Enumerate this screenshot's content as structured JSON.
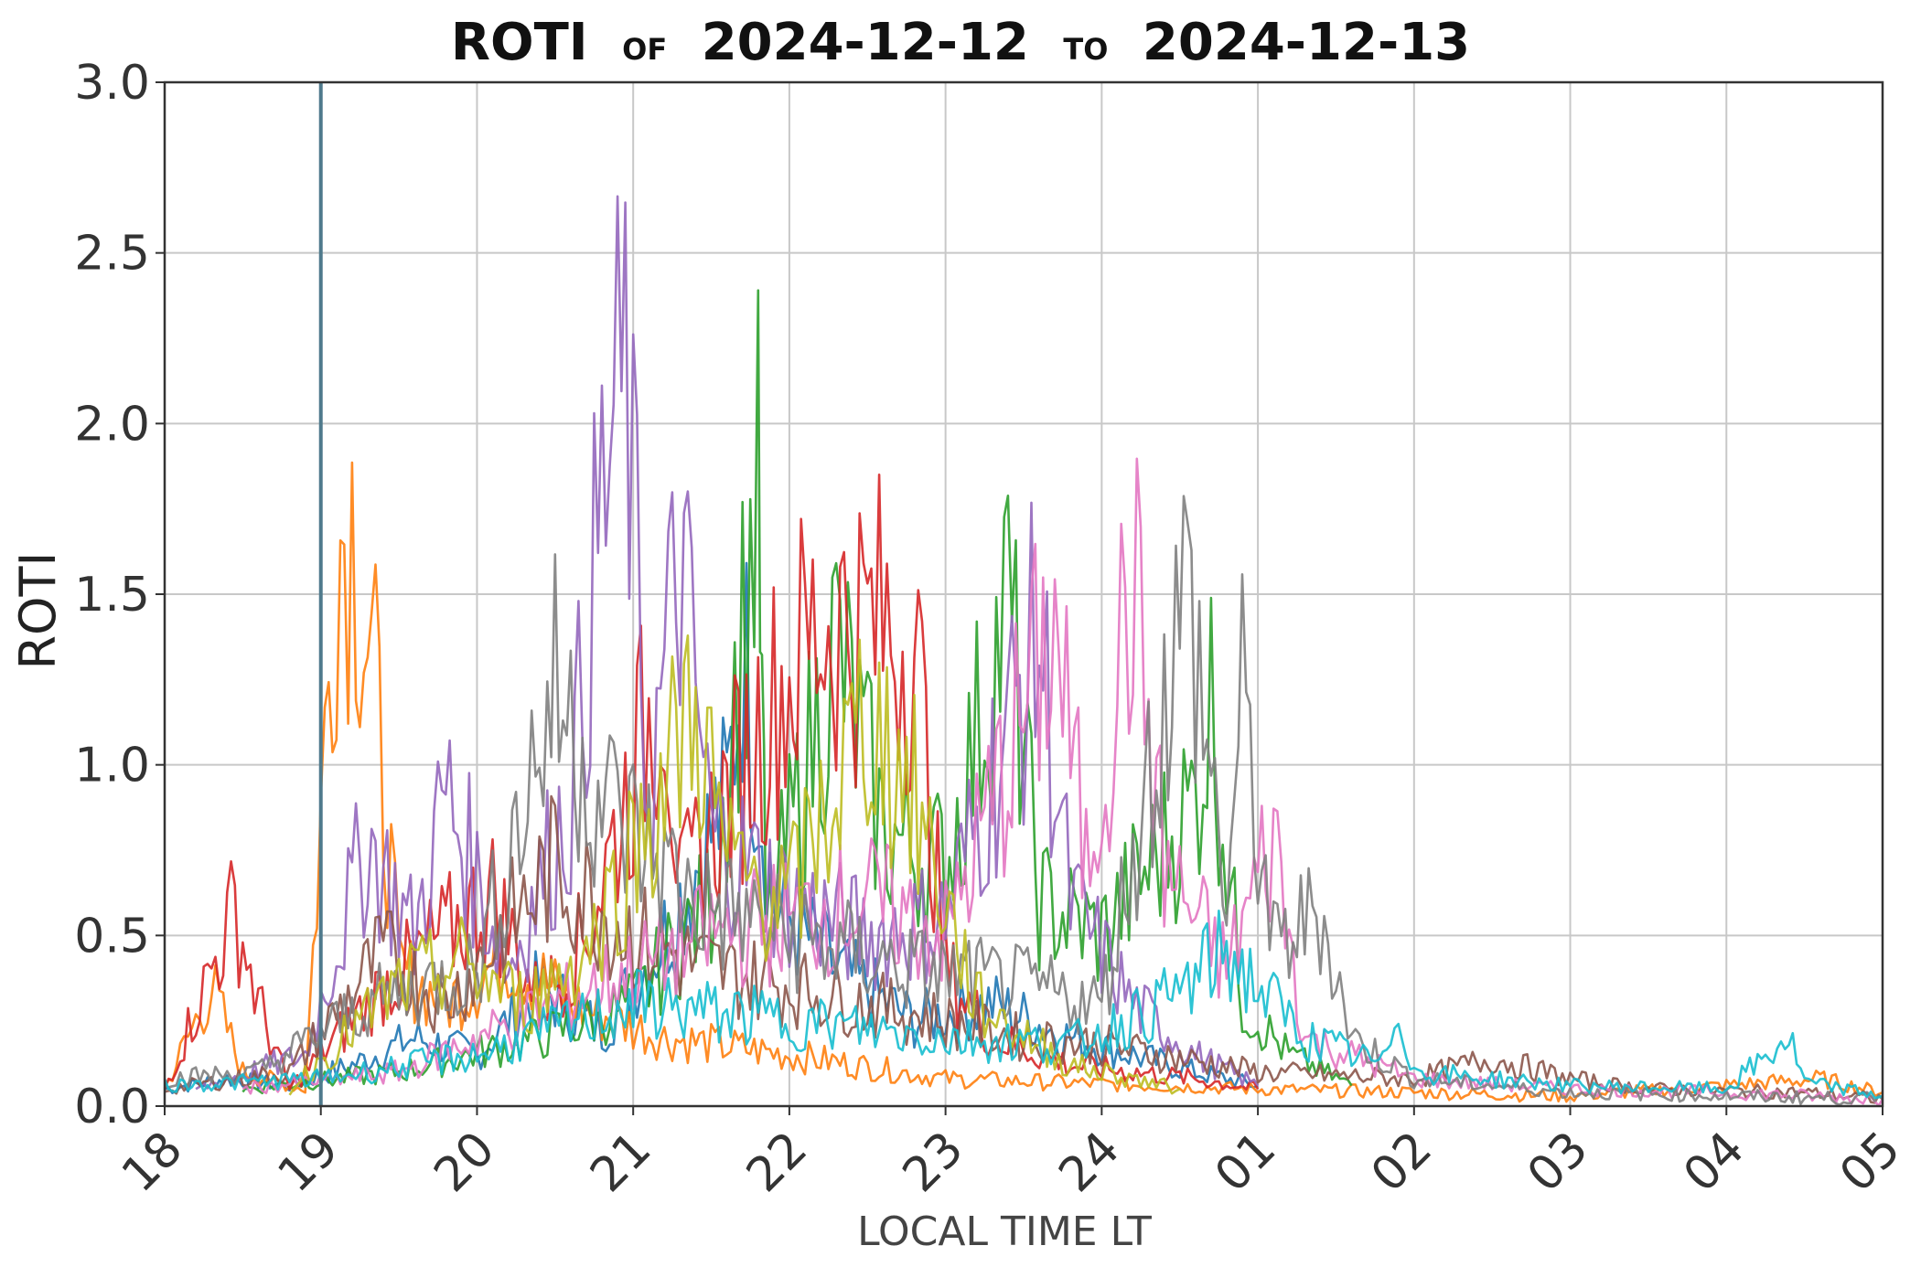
{
  "title": {
    "metric": "ROTI",
    "of_word": "OF",
    "start_date": "2024-12-12",
    "to_word": "TO",
    "end_date": "2024-12-13"
  },
  "chart_data": {
    "type": "line",
    "title": "ROTI OF 2024-12-12 TO 2024-12-13",
    "xlabel": "LOCAL TIME LT",
    "ylabel": "ROTI",
    "x_tick_labels": [
      "18",
      "19",
      "20",
      "21",
      "22",
      "23",
      "24",
      "01",
      "02",
      "03",
      "04",
      "05"
    ],
    "xlim": [
      18,
      29
    ],
    "ylim": [
      0,
      3.0
    ],
    "y_tick_labels": [
      "0.0",
      "0.5",
      "1.0",
      "1.5",
      "2.0",
      "2.5",
      "3.0"
    ],
    "grid": true,
    "legend": "none",
    "vertical_marker": {
      "x": 19.0,
      "color": "#4f7a8c"
    },
    "series": [
      {
        "color": "#1f77b4",
        "points": [
          [
            18.0,
            0.05
          ],
          [
            18.4,
            0.08
          ],
          [
            18.8,
            0.06
          ],
          [
            19.2,
            0.12
          ],
          [
            19.6,
            0.2
          ],
          [
            20.0,
            0.15
          ],
          [
            20.4,
            0.35
          ],
          [
            20.8,
            0.22
          ],
          [
            21.2,
            0.5
          ],
          [
            21.6,
            0.9
          ],
          [
            21.7,
            1.35
          ],
          [
            21.9,
            0.6
          ],
          [
            22.3,
            0.4
          ],
          [
            22.8,
            0.25
          ],
          [
            23.3,
            0.3
          ],
          [
            23.8,
            0.2
          ],
          [
            24.2,
            0.15
          ],
          [
            24.6,
            0.1
          ],
          [
            25.0,
            0.06
          ]
        ]
      },
      {
        "color": "#ff7f0e",
        "points": [
          [
            18.0,
            0.05
          ],
          [
            18.3,
            0.35
          ],
          [
            18.5,
            0.1
          ],
          [
            18.9,
            0.05
          ],
          [
            19.1,
            1.65
          ],
          [
            19.2,
            1.74
          ],
          [
            19.35,
            1.2
          ],
          [
            19.5,
            0.4
          ],
          [
            19.8,
            0.3
          ],
          [
            20.2,
            0.45
          ],
          [
            20.6,
            0.3
          ],
          [
            21.2,
            0.2
          ],
          [
            22.0,
            0.15
          ],
          [
            23.0,
            0.08
          ],
          [
            25.0,
            0.05
          ],
          [
            27.0,
            0.03
          ],
          [
            28.6,
            0.08
          ],
          [
            29.0,
            0.04
          ]
        ]
      },
      {
        "color": "#2ca02c",
        "points": [
          [
            18.5,
            0.05
          ],
          [
            19.5,
            0.1
          ],
          [
            20.4,
            0.2
          ],
          [
            21.0,
            0.3
          ],
          [
            21.5,
            0.6
          ],
          [
            21.8,
            1.79
          ],
          [
            21.85,
            0.5
          ],
          [
            22.3,
            1.35
          ],
          [
            22.6,
            0.8
          ],
          [
            23.0,
            0.7
          ],
          [
            23.4,
            1.47
          ],
          [
            23.6,
            0.6
          ],
          [
            24.0,
            0.5
          ],
          [
            24.6,
            0.9
          ],
          [
            24.7,
            1.2
          ],
          [
            24.9,
            0.3
          ],
          [
            25.2,
            0.15
          ],
          [
            25.6,
            0.06
          ]
        ]
      },
      {
        "color": "#d62728",
        "points": [
          [
            18.0,
            0.05
          ],
          [
            18.45,
            0.58
          ],
          [
            18.6,
            0.3
          ],
          [
            18.8,
            0.05
          ],
          [
            19.4,
            0.35
          ],
          [
            20.1,
            0.62
          ],
          [
            20.4,
            0.3
          ],
          [
            20.7,
            0.5
          ],
          [
            21.2,
            1.3
          ],
          [
            21.3,
            0.6
          ],
          [
            21.8,
            1.1
          ],
          [
            22.2,
            1.42
          ],
          [
            22.6,
            1.4
          ],
          [
            22.8,
            1.38
          ],
          [
            23.0,
            0.4
          ],
          [
            23.3,
            0.2
          ],
          [
            23.8,
            0.12
          ],
          [
            24.6,
            0.08
          ],
          [
            25.0,
            0.05
          ]
        ]
      },
      {
        "color": "#9467bd",
        "points": [
          [
            18.2,
            0.05
          ],
          [
            18.9,
            0.15
          ],
          [
            19.3,
            0.78
          ],
          [
            19.6,
            0.5
          ],
          [
            19.8,
            0.92
          ],
          [
            20.2,
            0.4
          ],
          [
            20.6,
            0.9
          ],
          [
            20.8,
            1.75
          ],
          [
            20.95,
            2.15
          ],
          [
            21.1,
            0.9
          ],
          [
            21.3,
            1.6
          ],
          [
            21.5,
            0.8
          ],
          [
            22.0,
            0.6
          ],
          [
            22.5,
            0.5
          ],
          [
            23.0,
            0.55
          ],
          [
            23.6,
            1.38
          ],
          [
            23.8,
            0.6
          ],
          [
            24.2,
            0.3
          ],
          [
            24.6,
            0.15
          ],
          [
            25.0,
            0.06
          ]
        ]
      },
      {
        "color": "#8c564b",
        "points": [
          [
            18.0,
            0.05
          ],
          [
            18.8,
            0.1
          ],
          [
            19.4,
            0.45
          ],
          [
            19.8,
            0.3
          ],
          [
            20.5,
            0.7
          ],
          [
            21.0,
            0.5
          ],
          [
            21.5,
            0.4
          ],
          [
            22.0,
            0.35
          ],
          [
            22.5,
            0.3
          ],
          [
            23.0,
            0.25
          ],
          [
            23.5,
            0.2
          ],
          [
            24.0,
            0.18
          ],
          [
            25.0,
            0.1
          ],
          [
            26.0,
            0.08
          ],
          [
            26.5,
            0.14
          ],
          [
            27.0,
            0.08
          ],
          [
            27.5,
            0.05
          ],
          [
            28.5,
            0.04
          ],
          [
            29.0,
            0.02
          ]
        ]
      },
      {
        "color": "#e377c2",
        "points": [
          [
            18.5,
            0.05
          ],
          [
            19.5,
            0.1
          ],
          [
            20.5,
            0.3
          ],
          [
            21.5,
            0.5
          ],
          [
            22.5,
            0.6
          ],
          [
            23.0,
            0.5
          ],
          [
            23.7,
            1.4
          ],
          [
            23.9,
            0.7
          ],
          [
            24.2,
            1.55
          ],
          [
            24.4,
            0.7
          ],
          [
            24.8,
            0.4
          ],
          [
            25.1,
            0.8
          ],
          [
            25.3,
            0.2
          ],
          [
            26.0,
            0.08
          ],
          [
            27.0,
            0.05
          ],
          [
            28.0,
            0.04
          ],
          [
            29.0,
            0.02
          ]
        ]
      },
      {
        "color": "#7f7f7f",
        "points": [
          [
            18.0,
            0.08
          ],
          [
            18.6,
            0.1
          ],
          [
            19.3,
            0.3
          ],
          [
            20.0,
            0.4
          ],
          [
            20.5,
            1.22
          ],
          [
            20.8,
            0.9
          ],
          [
            21.4,
            0.6
          ],
          [
            22.0,
            0.5
          ],
          [
            22.8,
            0.4
          ],
          [
            23.5,
            0.35
          ],
          [
            24.0,
            0.3
          ],
          [
            24.55,
            1.52
          ],
          [
            24.8,
            0.6
          ],
          [
            24.9,
            1.17
          ],
          [
            25.1,
            0.45
          ],
          [
            25.4,
            0.58
          ],
          [
            25.6,
            0.2
          ],
          [
            26.0,
            0.08
          ],
          [
            27.0,
            0.04
          ],
          [
            29.0,
            0.02
          ]
        ]
      },
      {
        "color": "#bcbd22",
        "points": [
          [
            18.8,
            0.05
          ],
          [
            19.5,
            0.35
          ],
          [
            19.9,
            0.42
          ],
          [
            20.3,
            0.3
          ],
          [
            20.7,
            0.45
          ],
          [
            21.2,
            0.95
          ],
          [
            21.4,
            1.18
          ],
          [
            21.6,
            0.7
          ],
          [
            22.0,
            0.6
          ],
          [
            22.5,
            1.15
          ],
          [
            22.8,
            0.9
          ],
          [
            23.2,
            0.3
          ],
          [
            23.8,
            0.12
          ],
          [
            24.5,
            0.05
          ]
        ]
      },
      {
        "color": "#17becf",
        "points": [
          [
            18.0,
            0.06
          ],
          [
            19.0,
            0.08
          ],
          [
            20.0,
            0.15
          ],
          [
            21.0,
            0.3
          ],
          [
            22.0,
            0.25
          ],
          [
            23.0,
            0.2
          ],
          [
            23.8,
            0.18
          ],
          [
            24.4,
            0.3
          ],
          [
            24.8,
            0.45
          ],
          [
            25.0,
            0.35
          ],
          [
            25.3,
            0.2
          ],
          [
            25.8,
            0.12
          ],
          [
            25.9,
            0.3
          ],
          [
            26.0,
            0.1
          ],
          [
            27.0,
            0.06
          ],
          [
            28.0,
            0.05
          ],
          [
            28.4,
            0.2
          ],
          [
            28.5,
            0.07
          ],
          [
            29.0,
            0.03
          ]
        ]
      }
    ]
  }
}
